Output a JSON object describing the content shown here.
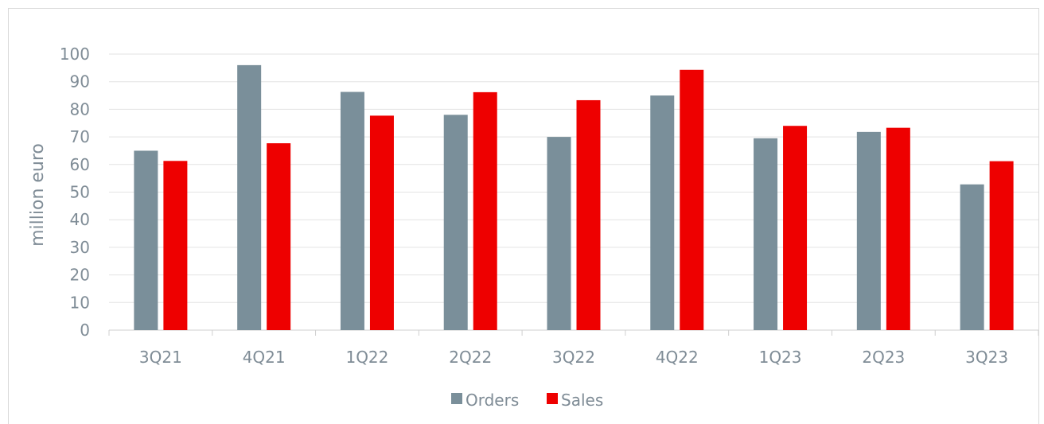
{
  "chart_data": {
    "type": "bar",
    "categories": [
      "3Q21",
      "4Q21",
      "1Q22",
      "2Q22",
      "3Q22",
      "4Q22",
      "1Q23",
      "2Q23",
      "3Q23"
    ],
    "series": [
      {
        "name": "Orders",
        "color": "#7a8f9a",
        "values": [
          65,
          96,
          86.3,
          78,
          70,
          85,
          69.5,
          71.8,
          52.8
        ]
      },
      {
        "name": "Sales",
        "color": "#ee0000",
        "values": [
          61.3,
          67.7,
          77.7,
          86.2,
          83.3,
          94.3,
          74,
          73.3,
          61.2
        ]
      }
    ],
    "title": "",
    "xlabel": "",
    "ylabel": "million euro",
    "ylim": [
      0,
      100
    ],
    "yticks": [
      "0",
      "10",
      "20",
      "30",
      "40",
      "50",
      "60",
      "70",
      "80",
      "90",
      "100"
    ],
    "grid": true,
    "legend_position": "bottom-center"
  }
}
